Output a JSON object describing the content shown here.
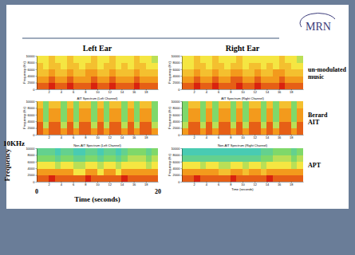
{
  "slide": {
    "logo": "MRN",
    "column_titles": [
      "Left Ear",
      "Right Ear"
    ],
    "row_labels": [
      "un-modulated music",
      "Berard AIT",
      "APT"
    ],
    "frequency_max_label": "10KHz",
    "frequency_label": "Frequency",
    "time_label": "Time (seconds)",
    "time_end_labels": [
      0,
      20
    ]
  },
  "chart_data": [
    {
      "type": "heatmap",
      "ylabel": "Frequency (Hz)",
      "x_bins": [
        0,
        1,
        2,
        3,
        4,
        5,
        6,
        7,
        8,
        9,
        10,
        11,
        12,
        13,
        14,
        15,
        16,
        17,
        18,
        19,
        20
      ],
      "y_bins": [
        0,
        2000,
        4000,
        6000,
        8000,
        10000
      ],
      "z": [
        [
          8,
          8,
          9,
          8,
          8,
          9,
          8,
          8,
          8,
          9,
          8,
          8,
          9,
          8,
          8,
          8,
          9,
          8,
          8,
          8
        ],
        [
          7,
          7,
          8,
          7,
          7,
          8,
          7,
          7,
          7,
          8,
          7,
          7,
          8,
          7,
          7,
          7,
          8,
          7,
          7,
          7
        ],
        [
          6,
          6,
          7,
          6,
          6,
          7,
          6,
          6,
          7,
          7,
          6,
          6,
          7,
          6,
          6,
          6,
          7,
          6,
          6,
          6
        ],
        [
          6,
          5,
          6,
          6,
          5,
          6,
          6,
          5,
          6,
          6,
          5,
          6,
          6,
          5,
          6,
          5,
          6,
          6,
          5,
          5
        ],
        [
          5,
          5,
          6,
          5,
          5,
          6,
          5,
          5,
          5,
          6,
          5,
          5,
          6,
          5,
          5,
          5,
          6,
          5,
          5,
          4
        ]
      ],
      "zlim": [
        0,
        9
      ],
      "xlim": [
        0,
        20
      ],
      "ylim": [
        0,
        10000
      ],
      "xticks": [
        2,
        4,
        6,
        8,
        10,
        12,
        14,
        16,
        18
      ],
      "yticks": [
        0,
        2000,
        4000,
        6000,
        8000,
        10000
      ]
    },
    {
      "type": "heatmap",
      "ylabel": "Frequency (Hz)",
      "x_bins": [
        0,
        1,
        2,
        3,
        4,
        5,
        6,
        7,
        8,
        9,
        10,
        11,
        12,
        13,
        14,
        15,
        16,
        17,
        18,
        19,
        20
      ],
      "y_bins": [
        0,
        2000,
        4000,
        6000,
        8000,
        10000
      ],
      "z": [
        [
          8,
          8,
          9,
          8,
          8,
          9,
          8,
          8,
          8,
          9,
          8,
          8,
          9,
          8,
          8,
          8,
          9,
          8,
          8,
          8
        ],
        [
          7,
          7,
          8,
          7,
          7,
          8,
          7,
          7,
          8,
          8,
          7,
          7,
          8,
          7,
          7,
          7,
          8,
          7,
          7,
          7
        ],
        [
          6,
          6,
          7,
          6,
          6,
          7,
          6,
          6,
          7,
          7,
          6,
          6,
          7,
          6,
          6,
          7,
          7,
          6,
          6,
          6
        ],
        [
          5,
          5,
          6,
          6,
          5,
          6,
          6,
          5,
          6,
          6,
          5,
          6,
          6,
          5,
          6,
          5,
          6,
          6,
          5,
          5
        ],
        [
          5,
          5,
          6,
          5,
          5,
          6,
          5,
          5,
          5,
          6,
          5,
          5,
          5,
          5,
          5,
          5,
          6,
          5,
          5,
          4
        ]
      ],
      "zlim": [
        0,
        9
      ],
      "xlim": [
        0,
        20
      ],
      "ylim": [
        0,
        10000
      ],
      "xticks": [
        2,
        4,
        6,
        8,
        10,
        12,
        14,
        16,
        18
      ],
      "yticks": [
        0,
        2000,
        4000,
        6000,
        8000,
        10000
      ]
    },
    {
      "type": "heatmap",
      "title": "AIT Spectrum (Left Channel)",
      "ylabel": "Frequency (Hz)",
      "x_bins": [
        0,
        1,
        2,
        3,
        4,
        5,
        6,
        7,
        8,
        9,
        10,
        11,
        12,
        13,
        14,
        15,
        16,
        17,
        18,
        19,
        20
      ],
      "y_bins": [
        0,
        2000,
        4000,
        6000,
        8000,
        10000
      ],
      "z": [
        [
          8,
          7,
          8,
          8,
          7,
          8,
          7,
          8,
          8,
          7,
          8,
          7,
          8,
          8,
          7,
          8,
          7,
          8,
          8,
          7
        ],
        [
          8,
          4,
          8,
          8,
          4,
          8,
          4,
          8,
          8,
          4,
          8,
          4,
          8,
          8,
          4,
          8,
          4,
          8,
          8,
          4
        ],
        [
          7,
          3,
          7,
          7,
          3,
          7,
          3,
          7,
          7,
          3,
          7,
          3,
          7,
          7,
          3,
          7,
          3,
          7,
          7,
          3
        ],
        [
          7,
          3,
          7,
          7,
          3,
          7,
          3,
          7,
          7,
          3,
          7,
          3,
          7,
          7,
          3,
          7,
          3,
          7,
          7,
          3
        ],
        [
          6,
          3,
          6,
          6,
          3,
          6,
          3,
          6,
          6,
          3,
          6,
          3,
          6,
          6,
          3,
          6,
          3,
          6,
          6,
          3
        ]
      ],
      "zlim": [
        0,
        9
      ],
      "xlim": [
        0,
        20
      ],
      "ylim": [
        0,
        10000
      ],
      "xticks": [
        2,
        4,
        6,
        8,
        10,
        12,
        14,
        16,
        18
      ],
      "yticks": [
        0,
        2000,
        4000,
        6000,
        8000,
        10000
      ]
    },
    {
      "type": "heatmap",
      "title": "AIT Spectrum (Right Channel)",
      "ylabel": "Frequency (Hz)",
      "x_bins": [
        0,
        1,
        2,
        3,
        4,
        5,
        6,
        7,
        8,
        9,
        10,
        11,
        12,
        13,
        14,
        15,
        16,
        17,
        18,
        19,
        20
      ],
      "y_bins": [
        0,
        2000,
        4000,
        6000,
        8000,
        10000
      ],
      "z": [
        [
          7,
          8,
          8,
          7,
          8,
          7,
          8,
          8,
          7,
          8,
          7,
          8,
          8,
          7,
          8,
          7,
          8,
          8,
          7,
          8
        ],
        [
          4,
          8,
          8,
          4,
          8,
          4,
          8,
          8,
          4,
          8,
          4,
          8,
          8,
          4,
          8,
          4,
          8,
          8,
          4,
          8
        ],
        [
          3,
          7,
          7,
          3,
          7,
          3,
          7,
          7,
          3,
          7,
          3,
          7,
          7,
          3,
          7,
          3,
          7,
          7,
          3,
          7
        ],
        [
          3,
          7,
          7,
          3,
          7,
          3,
          7,
          7,
          3,
          7,
          3,
          7,
          7,
          3,
          7,
          3,
          7,
          7,
          3,
          7
        ],
        [
          3,
          6,
          6,
          3,
          6,
          3,
          6,
          6,
          3,
          6,
          3,
          6,
          6,
          3,
          6,
          3,
          6,
          6,
          3,
          6
        ]
      ],
      "zlim": [
        0,
        9
      ],
      "xlim": [
        0,
        20
      ],
      "ylim": [
        0,
        10000
      ],
      "xticks": [
        2,
        4,
        6,
        8,
        10,
        12,
        14,
        16,
        18
      ],
      "yticks": [
        0,
        2000,
        4000,
        6000,
        8000,
        10000
      ]
    },
    {
      "type": "heatmap",
      "title": "Non-AIT Spectrum (Left Channel)",
      "x_bins": [
        0,
        1,
        2,
        3,
        4,
        5,
        6,
        7,
        8,
        9,
        10,
        11,
        12,
        13,
        14,
        15,
        16,
        17,
        18,
        19,
        20
      ],
      "y_bins": [
        0,
        2000,
        4000,
        6000,
        8000,
        10000
      ],
      "z": [
        [
          8,
          8,
          9,
          8,
          8,
          8,
          8,
          8,
          9,
          8,
          8,
          8,
          8,
          8,
          9,
          8,
          8,
          8,
          8,
          8
        ],
        [
          7,
          7,
          7,
          7,
          7,
          7,
          5,
          5,
          7,
          7,
          5,
          7,
          7,
          5,
          7,
          7,
          7,
          7,
          7,
          7
        ],
        [
          5,
          5,
          5,
          4,
          5,
          5,
          4,
          4,
          5,
          5,
          4,
          5,
          5,
          4,
          5,
          5,
          5,
          5,
          4,
          5
        ],
        [
          3,
          3,
          3,
          2,
          3,
          3,
          2,
          2,
          3,
          3,
          2,
          3,
          3,
          2,
          3,
          4,
          4,
          4,
          3,
          4
        ],
        [
          2,
          2,
          2,
          1,
          2,
          2,
          1,
          1,
          2,
          2,
          1,
          2,
          2,
          1,
          2,
          3,
          3,
          3,
          2,
          3
        ]
      ],
      "zlim": [
        0,
        9
      ],
      "xlim": [
        0,
        20
      ],
      "ylim": [
        0,
        10000
      ],
      "xticks": [
        2,
        4,
        6,
        8,
        10,
        12,
        14,
        16,
        18
      ],
      "yticks": [
        0,
        2000,
        4000,
        6000,
        8000,
        10000
      ]
    },
    {
      "type": "heatmap",
      "title": "Non-AIT Spectrum (Right Channel)",
      "xlabel": "Time (seconds)",
      "ylabel": "Frequency (Hz)",
      "x_bins": [
        0,
        1,
        2,
        3,
        4,
        5,
        6,
        7,
        8,
        9,
        10,
        11,
        12,
        13,
        14,
        15,
        16,
        17,
        18,
        19,
        20
      ],
      "y_bins": [
        0,
        2000,
        4000,
        6000,
        8000,
        10000
      ],
      "z": [
        [
          8,
          8,
          9,
          8,
          8,
          8,
          8,
          8,
          9,
          8,
          8,
          8,
          8,
          8,
          9,
          8,
          8,
          8,
          8,
          8
        ],
        [
          7,
          7,
          7,
          7,
          7,
          7,
          6,
          6,
          7,
          7,
          6,
          7,
          7,
          6,
          7,
          7,
          7,
          7,
          7,
          7
        ],
        [
          5,
          5,
          5,
          4,
          5,
          5,
          4,
          4,
          5,
          5,
          4,
          5,
          5,
          4,
          5,
          5,
          5,
          5,
          4,
          5
        ],
        [
          2,
          2,
          2,
          2,
          2,
          2,
          2,
          2,
          2,
          2,
          2,
          2,
          2,
          3,
          3,
          4,
          4,
          4,
          3,
          4
        ],
        [
          1,
          1,
          1,
          1,
          1,
          1,
          1,
          1,
          1,
          1,
          1,
          1,
          1,
          2,
          2,
          3,
          3,
          3,
          2,
          3
        ]
      ],
      "zlim": [
        0,
        9
      ],
      "xlim": [
        0,
        20
      ],
      "ylim": [
        0,
        10000
      ],
      "xticks": [
        2,
        4,
        6,
        8,
        10,
        12,
        14,
        16,
        18
      ],
      "yticks": [
        0,
        2000,
        4000,
        6000,
        8000,
        10000
      ]
    }
  ]
}
